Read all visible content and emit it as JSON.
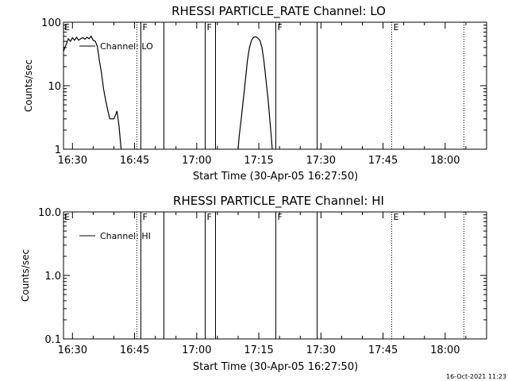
{
  "footer": {
    "date_stamp": "16-Oct-2021 11:23"
  },
  "chart_data": [
    {
      "type": "line",
      "title": "RHESSI PARTICLE_RATE Channel: LO",
      "xlabel": "Start Time (30-Apr-05 16:27:50)",
      "ylabel": "Counts/sec",
      "yscale": "log",
      "ylim": [
        1,
        100
      ],
      "xlim": [
        "16:27:50",
        "18:10:00"
      ],
      "x_ticks": [
        "16:30",
        "16:45",
        "17:00",
        "17:15",
        "17:30",
        "17:45",
        "18:00"
      ],
      "y_ticks": [
        "1",
        "10",
        "100"
      ],
      "grid": false,
      "legend": {
        "position": "top-left",
        "entries": [
          "Channel: LO"
        ]
      },
      "event_lines": [
        {
          "time": "16:45:30",
          "style": "dotted"
        },
        {
          "time": "16:46:30",
          "style": "solid",
          "label": "F"
        },
        {
          "time": "16:52:00",
          "style": "solid"
        },
        {
          "time": "17:02:00",
          "style": "solid",
          "label": "F"
        },
        {
          "time": "17:04:30",
          "style": "solid"
        },
        {
          "time": "17:19:00",
          "style": "solid",
          "label": "F"
        },
        {
          "time": "17:29:00",
          "style": "solid"
        },
        {
          "time": "17:47:00",
          "style": "dotted",
          "label": "E"
        },
        {
          "time": "18:04:30",
          "style": "dotted"
        }
      ],
      "corner_label": "E",
      "series": [
        {
          "name": "Channel: LO",
          "segments": [
            [
              [
                "16:27:50",
                35
              ],
              [
                "16:28:30",
                45
              ],
              [
                "16:29:00",
                55
              ],
              [
                "16:29:30",
                50
              ],
              [
                "16:30:00",
                57
              ],
              [
                "16:30:30",
                52
              ],
              [
                "16:31:00",
                58
              ],
              [
                "16:31:30",
                52
              ],
              [
                "16:32:00",
                55
              ],
              [
                "16:32:30",
                57
              ],
              [
                "16:33:00",
                54
              ],
              [
                "16:33:30",
                58
              ],
              [
                "16:34:00",
                55
              ],
              [
                "16:34:30",
                60
              ],
              [
                "16:35:00",
                52
              ],
              [
                "16:35:30",
                50
              ],
              [
                "16:36:00",
                42
              ],
              [
                "16:36:30",
                25
              ],
              [
                "16:37:00",
                16
              ],
              [
                "16:37:30",
                9
              ],
              [
                "16:38:00",
                6
              ],
              [
                "16:38:30",
                4.2
              ],
              [
                "16:39:00",
                3
              ],
              [
                "16:39:30",
                3
              ],
              [
                "16:40:00",
                3
              ],
              [
                "16:40:30",
                3.6
              ],
              [
                "16:40:45",
                4
              ],
              [
                "16:41:15",
                2.3
              ],
              [
                "16:41:30",
                1.5
              ],
              [
                "16:41:45",
                1
              ]
            ],
            [
              [
                "17:10:00",
                1
              ],
              [
                "17:10:15",
                1.6
              ],
              [
                "17:10:45",
                3
              ],
              [
                "17:11:15",
                6
              ],
              [
                "17:11:45",
                12
              ],
              [
                "17:12:15",
                25
              ],
              [
                "17:12:45",
                40
              ],
              [
                "17:13:15",
                52
              ],
              [
                "17:13:45",
                58
              ],
              [
                "17:14:15",
                59
              ],
              [
                "17:14:45",
                56
              ],
              [
                "17:15:15",
                52
              ],
              [
                "17:15:45",
                40
              ],
              [
                "17:16:15",
                24
              ],
              [
                "17:16:45",
                12
              ],
              [
                "17:17:15",
                6
              ],
              [
                "17:17:45",
                2.5
              ],
              [
                "17:18:00",
                1.6
              ],
              [
                "17:18:15",
                1
              ]
            ]
          ]
        }
      ]
    },
    {
      "type": "line",
      "title": "RHESSI PARTICLE_RATE Channel: HI",
      "xlabel": "Start Time (30-Apr-05 16:27:50)",
      "ylabel": "Counts/sec",
      "yscale": "log",
      "ylim": [
        0.1,
        10
      ],
      "xlim": [
        "16:27:50",
        "18:10:00"
      ],
      "x_ticks": [
        "16:30",
        "16:45",
        "17:00",
        "17:15",
        "17:30",
        "17:45",
        "18:00"
      ],
      "y_ticks": [
        "0.1",
        "1.0",
        "10.0"
      ],
      "grid": false,
      "legend": {
        "position": "top-left",
        "entries": [
          "Channel: HI"
        ]
      },
      "event_lines": [
        {
          "time": "16:45:30",
          "style": "dotted"
        },
        {
          "time": "16:46:30",
          "style": "solid",
          "label": "F"
        },
        {
          "time": "16:52:00",
          "style": "solid"
        },
        {
          "time": "17:02:00",
          "style": "solid",
          "label": "F"
        },
        {
          "time": "17:04:30",
          "style": "solid"
        },
        {
          "time": "17:19:00",
          "style": "solid",
          "label": "F"
        },
        {
          "time": "17:29:00",
          "style": "solid"
        },
        {
          "time": "17:47:00",
          "style": "dotted",
          "label": "E"
        },
        {
          "time": "18:04:30",
          "style": "dotted"
        }
      ],
      "corner_label": "E",
      "series": [
        {
          "name": "Channel: HI",
          "segments": []
        }
      ]
    }
  ]
}
